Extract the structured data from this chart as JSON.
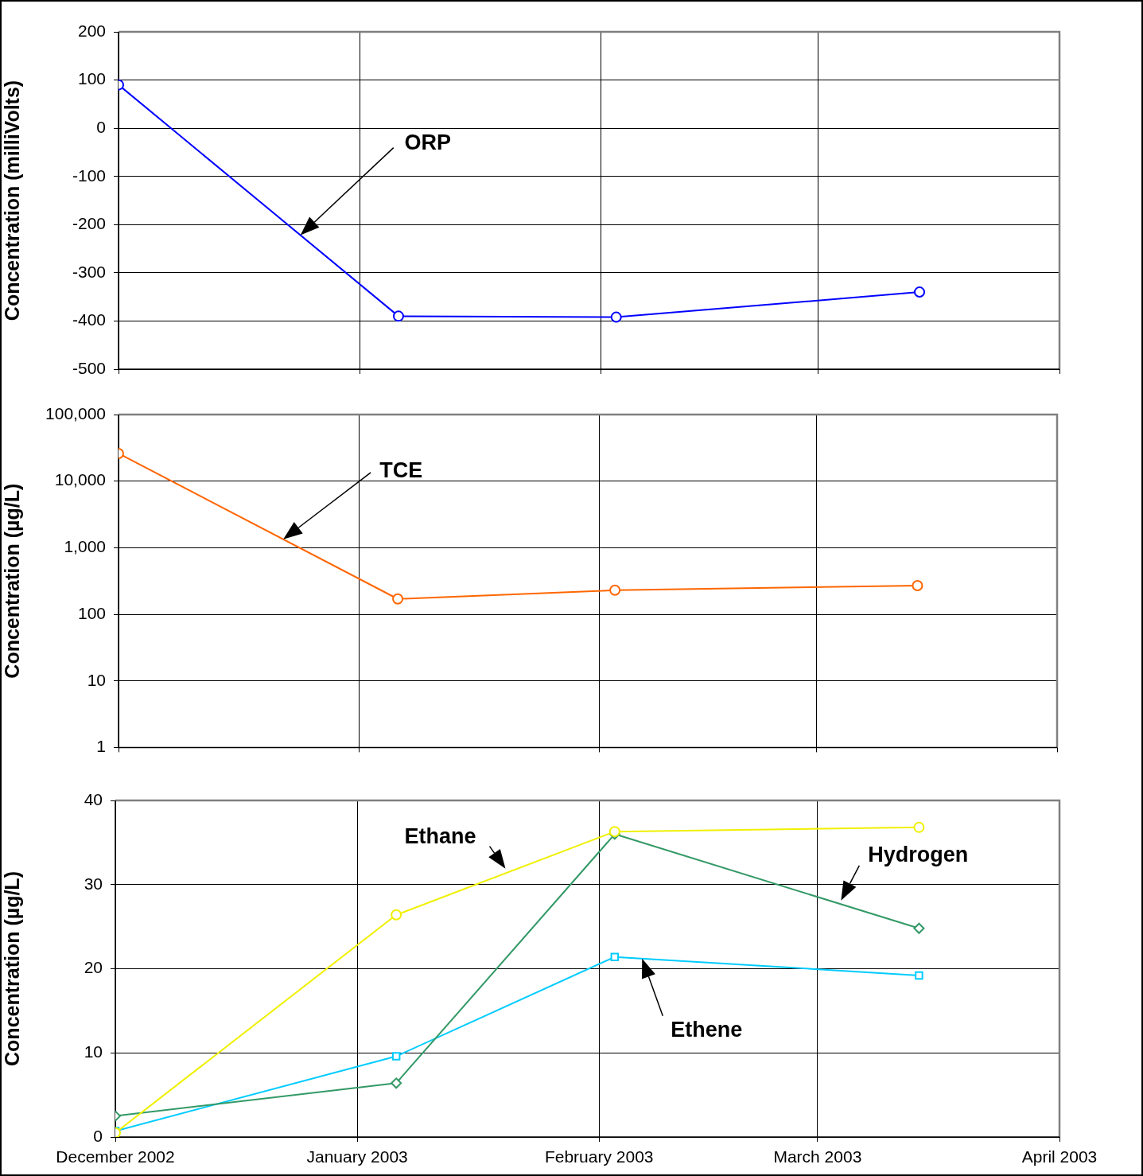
{
  "chart_data": [
    {
      "type": "line",
      "ylabel": "Concentration (milliVolts)",
      "xlim": [
        "2002-12-01",
        "2003-04-01"
      ],
      "xticks": [
        {
          "value": "2002-12-01",
          "label": null
        },
        {
          "value": "2003-01-01",
          "label": null
        },
        {
          "value": "2003-02-01",
          "label": null
        },
        {
          "value": "2003-03-01",
          "label": null
        },
        {
          "value": "2003-04-01",
          "label": null
        }
      ],
      "ylim": [
        -500,
        200
      ],
      "yticks": [
        -500,
        -400,
        -300,
        -200,
        -100,
        0,
        100,
        200
      ],
      "tick_labels": "y",
      "grid": true,
      "marker": "circle",
      "series": [
        {
          "color": "#0000ff",
          "x": [
            "2002-12-01",
            "2003-01-06",
            "2003-02-03",
            "2003-03-14"
          ],
          "values": [
            90,
            -390,
            -392,
            -340
          ]
        }
      ],
      "annotations": [
        "ORP"
      ]
    },
    {
      "type": "line",
      "ylabel": "Concentration (µg/L)",
      "xlim": [
        "2002-12-01",
        "2003-04-01"
      ],
      "xticks": [
        {
          "value": "2002-12-01",
          "label": null
        },
        {
          "value": "2003-01-01",
          "label": null
        },
        {
          "value": "2003-02-01",
          "label": null
        },
        {
          "value": "2003-03-01",
          "label": null
        },
        {
          "value": "2003-04-01",
          "label": null
        }
      ],
      "ylim": [
        1,
        100000
      ],
      "yticks": [
        1,
        10,
        100,
        {
          "value": 1000,
          "label": "1,000"
        },
        {
          "value": 10000,
          "label": "10,000"
        },
        {
          "value": 100000,
          "label": "100,000"
        }
      ],
      "log": true,
      "tick_labels": "y",
      "grid": true,
      "marker": "circle",
      "series": [
        {
          "color": "#ff6600",
          "x": [
            "2002-12-01",
            "2003-01-06",
            "2003-02-03",
            "2003-03-14"
          ],
          "values": [
            26000,
            170,
            230,
            270
          ]
        }
      ],
      "annotations": [
        "TCE"
      ]
    },
    {
      "type": "line",
      "ylabel": "Concentration (µg/L)",
      "xlim": [
        "2002-12-01",
        "2003-04-01"
      ],
      "xticks": [
        {
          "value": "2002-12-01",
          "label": "December 2002"
        },
        {
          "value": "2003-01-01",
          "label": "January 2003"
        },
        {
          "value": "2003-02-01",
          "label": "February 2003"
        },
        {
          "value": "2003-03-01",
          "label": "March 2003"
        },
        {
          "value": "2003-04-01",
          "label": "April 2003"
        }
      ],
      "ylim": [
        0,
        40
      ],
      "yticks": [
        0,
        10,
        20,
        30,
        40
      ],
      "grid": true,
      "series": [
        {
          "color": "#f0f000",
          "marker": "circle",
          "x": [
            "2002-12-01",
            "2003-01-06",
            "2003-02-03",
            "2003-03-14"
          ],
          "values": [
            0.5,
            26.4,
            36.3,
            36.8
          ]
        },
        {
          "color": "#339966",
          "marker": "diamond",
          "x": [
            "2002-12-01",
            "2003-01-06",
            "2003-02-03",
            "2003-03-14"
          ],
          "values": [
            2.5,
            6.4,
            36.0,
            24.8
          ]
        },
        {
          "color": "#00ccff",
          "marker": "square",
          "x": [
            "2002-12-01",
            "2003-01-06",
            "2003-02-03",
            "2003-03-14"
          ],
          "values": [
            0.7,
            9.6,
            21.4,
            19.2
          ]
        }
      ],
      "annotations": [
        {
          "text": "Ethane",
          "x": "2003-01-20",
          "y": 31.9
        },
        {
          "text": "Hydrogen",
          "x": "2003-03-04",
          "y": 28.1
        },
        "Ethene"
      ]
    }
  ]
}
